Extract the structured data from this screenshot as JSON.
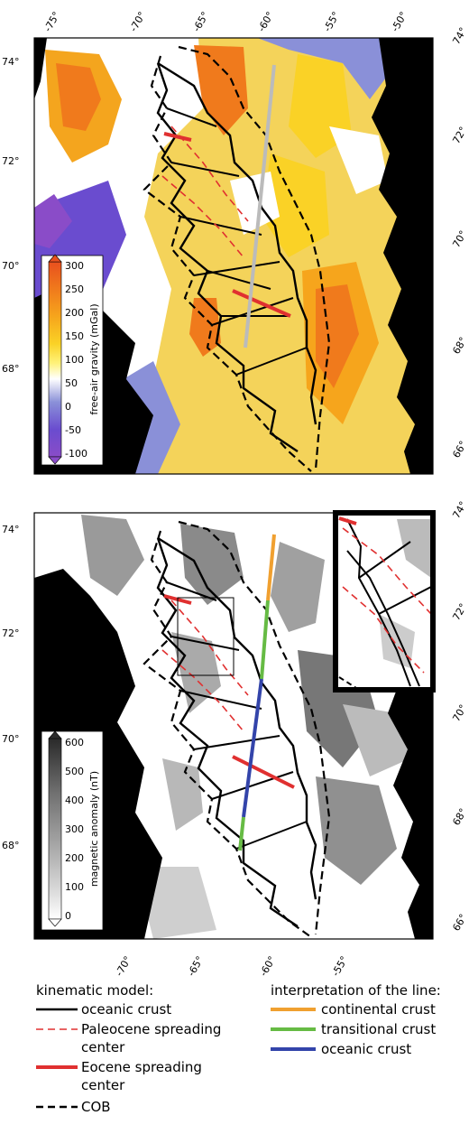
{
  "panels": [
    {
      "id": "gravity",
      "top_lon_labels": [
        "-75°",
        "-70°",
        "-65°",
        "-60°",
        "-55°",
        "-50°"
      ],
      "left_lat_labels": [
        "74°",
        "72°",
        "70°",
        "68°"
      ],
      "right_lat_labels": [
        "74°",
        "72°",
        "70°",
        "68°",
        "66°"
      ],
      "colorbar": {
        "title": "free-air gravity (mGal)",
        "ticks": [
          "300",
          "250",
          "200",
          "150",
          "100",
          "50",
          "0",
          "-50",
          "-100"
        ],
        "colors": [
          "#e8501e",
          "#f07a1c",
          "#f6a51c",
          "#fad226",
          "#fff27a",
          "#ffffff",
          "#8a90d8",
          "#6a4ccf",
          "#8a4cc8"
        ]
      }
    },
    {
      "id": "magnetic",
      "bottom_lon_labels": [
        "-70°",
        "-65°",
        "-60°",
        "-55°"
      ],
      "left_lat_labels": [
        "74°",
        "72°",
        "70°",
        "68°"
      ],
      "right_lat_labels": [
        "74°",
        "72°",
        "70°",
        "68°",
        "66°"
      ],
      "colorbar": {
        "title": "magnetic anomaly (nT)",
        "ticks": [
          "600",
          "500",
          "400",
          "300",
          "200",
          "100",
          "0"
        ],
        "colors": [
          "#2a2a2a",
          "#505050",
          "#777777",
          "#9a9a9a",
          "#bdbdbd",
          "#dddddd",
          "#ffffff"
        ]
      }
    }
  ],
  "legend": {
    "left_title": "kinematic model:",
    "left_items": [
      {
        "label": "oceanic crust",
        "style": "solid",
        "color": "#000000"
      },
      {
        "label": "Paleocene spreading",
        "label2": "center",
        "style": "dashed",
        "color": "#e03030"
      },
      {
        "label": "Eocene spreading",
        "label2": "center",
        "style": "solid-thick",
        "color": "#e03030"
      },
      {
        "label": "COB",
        "style": "dashed-thick",
        "color": "#000000"
      }
    ],
    "right_title": "interpretation of the line:",
    "right_items": [
      {
        "label": "continental crust",
        "color": "#f0a030"
      },
      {
        "label": "transitional crust",
        "color": "#66bb44"
      },
      {
        "label": "oceanic crust",
        "color": "#3344aa"
      }
    ]
  },
  "colors": {
    "land": "#000000",
    "profile_grav": "#bbbbbb",
    "continental": "#f0a030",
    "transitional": "#66bb44",
    "oceanic": "#3344aa",
    "eocene": "#e03030",
    "paleocene": "#e03030"
  }
}
